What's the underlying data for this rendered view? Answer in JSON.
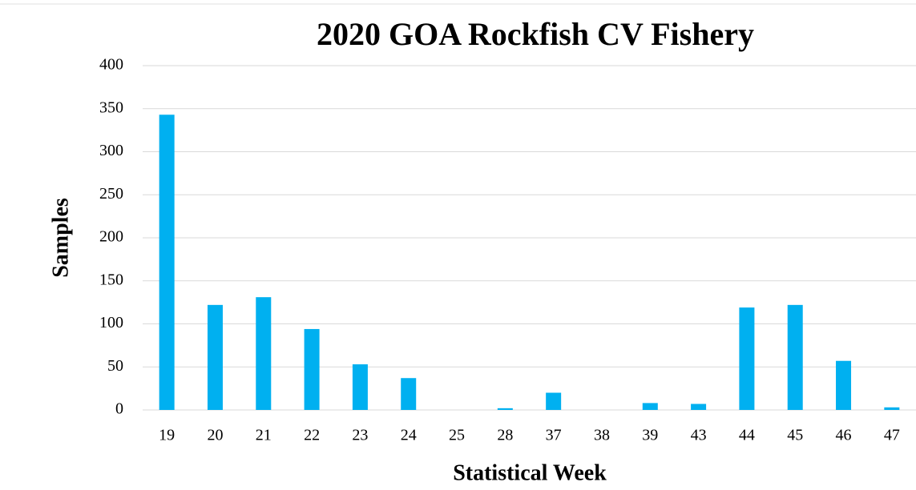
{
  "chart_data": {
    "type": "bar",
    "title": "2020 GOA Rockfish CV Fishery",
    "x_label": "Statistical Week",
    "y_label": "Samples",
    "categories": [
      "19",
      "20",
      "21",
      "22",
      "23",
      "24",
      "25",
      "28",
      "37",
      "38",
      "39",
      "43",
      "44",
      "45",
      "46",
      "47"
    ],
    "values": [
      343,
      122,
      131,
      94,
      53,
      37,
      0,
      2,
      20,
      0,
      8,
      7,
      119,
      122,
      57,
      3
    ],
    "color": "#00b0f0",
    "ylim": [
      0,
      400
    ],
    "yticks": [
      0,
      50,
      100,
      150,
      200,
      250,
      300,
      350,
      400
    ],
    "grid": true
  }
}
